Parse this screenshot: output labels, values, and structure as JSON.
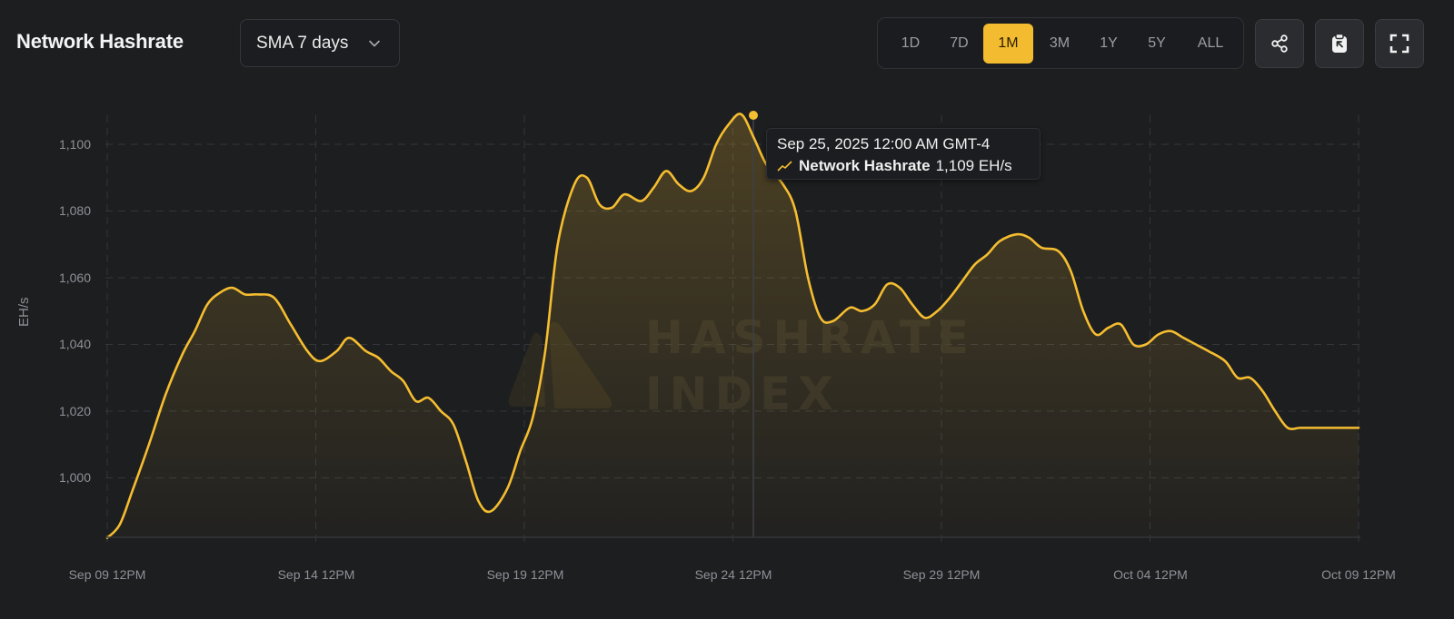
{
  "header": {
    "title": "Network Hashrate",
    "smoothing_select": {
      "value": "SMA 7 days"
    },
    "range_options": [
      {
        "label": "1D",
        "active": false
      },
      {
        "label": "7D",
        "active": false
      },
      {
        "label": "1M",
        "active": true
      },
      {
        "label": "3M",
        "active": false
      },
      {
        "label": "1Y",
        "active": false
      },
      {
        "label": "5Y",
        "active": false
      },
      {
        "label": "ALL",
        "active": false
      }
    ],
    "actions": [
      {
        "name": "share-icon"
      },
      {
        "name": "clipboard-icon"
      },
      {
        "name": "fullscreen-icon"
      }
    ]
  },
  "tooltip": {
    "date": "Sep 25, 2025 12:00 AM GMT-4",
    "series_label": "Network Hashrate",
    "value": "1,109 EH/s"
  },
  "watermark": {
    "line1": "HASHRATE",
    "line2": "INDEX"
  },
  "colors": {
    "accent": "#f3bb2f",
    "line": "#f5bd30",
    "background": "#1d1e20",
    "grid": "#34363b",
    "axis_text": "#8e9197"
  },
  "chart_data": {
    "type": "area",
    "title": "Network Hashrate",
    "subtitle": "SMA 7 days",
    "xlabel": "",
    "ylabel": "EH/s",
    "ylim": [
      982,
      1110
    ],
    "yticks": [
      "1,000",
      "1,020",
      "1,040",
      "1,060",
      "1,080",
      "1,100"
    ],
    "xticks": [
      "Sep 09 12PM",
      "Sep 14 12PM",
      "Sep 19 12PM",
      "Sep 24 12PM",
      "Sep 29 12PM",
      "Oct 04 12PM",
      "Oct 09 12PM"
    ],
    "grid": true,
    "legend": "none",
    "highlight": {
      "x": "Sep 25, 2025 12:00 AM",
      "y": 1109
    },
    "series": [
      {
        "name": "Network Hashrate",
        "x_days_from_sep09_12pm": [
          0,
          0.3,
          0.6,
          1.0,
          1.4,
          1.8,
          2.1,
          2.4,
          2.7,
          3.0,
          3.3,
          3.6,
          4.0,
          4.4,
          4.8,
          5.1,
          5.5,
          5.8,
          6.2,
          6.5,
          6.8,
          7.1,
          7.4,
          7.7,
          8.0,
          8.3,
          8.6,
          8.9,
          9.2,
          9.6,
          9.9,
          10.2,
          10.5,
          10.8,
          11.2,
          11.5,
          11.8,
          12.1,
          12.4,
          12.8,
          13.1,
          13.4,
          13.7,
          14.0,
          14.3,
          14.6,
          14.9,
          15.2,
          15.5,
          15.8,
          16.2,
          16.5,
          16.8,
          17.1,
          17.4,
          17.8,
          18.1,
          18.4,
          18.7,
          19.0,
          19.3,
          19.6,
          19.9,
          20.2,
          20.5,
          20.8,
          21.1,
          21.4,
          21.8,
          22.1,
          22.4,
          22.8,
          23.1,
          23.4,
          23.7,
          24.0,
          24.3,
          24.6,
          24.9,
          25.2,
          25.5,
          25.8,
          26.1,
          26.4,
          26.8,
          27.1,
          27.4,
          27.7,
          28.0,
          28.3,
          28.6,
          29.0,
          29.3,
          29.6,
          30.0
        ],
        "values": [
          982,
          986,
          996,
          1010,
          1025,
          1037,
          1044,
          1052,
          1055.5,
          1057,
          1055,
          1055,
          1054,
          1046,
          1038,
          1035,
          1038,
          1042,
          1038,
          1036,
          1032,
          1029,
          1023,
          1024,
          1020,
          1016,
          1005,
          993,
          990,
          997,
          1008,
          1018,
          1038,
          1070,
          1088,
          1090,
          1082,
          1081,
          1085,
          1083,
          1087,
          1092,
          1088,
          1086,
          1090,
          1100,
          1106,
          1109,
          1102,
          1094,
          1088,
          1080,
          1060,
          1048,
          1047,
          1051,
          1050,
          1052,
          1058,
          1057,
          1052,
          1048,
          1050,
          1054,
          1059,
          1064,
          1067,
          1071,
          1073,
          1072,
          1069,
          1068,
          1062,
          1050,
          1043,
          1045,
          1046,
          1040,
          1040,
          1043,
          1044,
          1042,
          1040,
          1038,
          1035,
          1030,
          1030,
          1026,
          1020,
          1015,
          1015,
          1015,
          1015,
          1015,
          1015
        ]
      }
    ]
  }
}
